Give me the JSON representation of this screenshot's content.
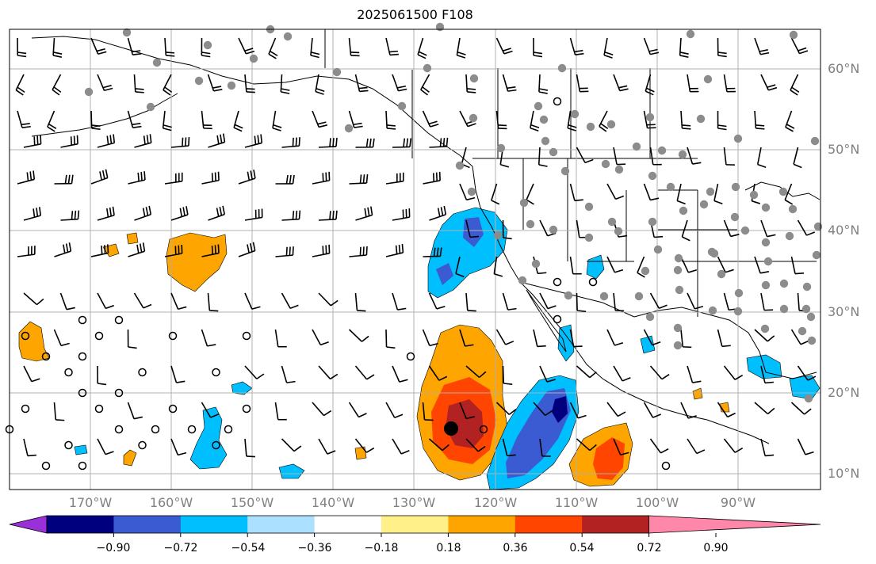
{
  "title": "2025061500 F108",
  "lat_labels": [
    "60°N",
    "50°N",
    "40°N",
    "30°N",
    "20°N",
    "10°N"
  ],
  "lon_labels": [
    "170°W",
    "160°W",
    "150°W",
    "140°W",
    "130°W",
    "120°W",
    "110°W",
    "100°W",
    "90°W"
  ],
  "colorbar": {
    "ticks": [
      "−0.90",
      "−0.72",
      "−0.54",
      "−0.36",
      "−0.18",
      "0.18",
      "0.36",
      "0.54",
      "0.72",
      "0.90"
    ],
    "colors": [
      "#9a30d8",
      "#00007f",
      "#3a5bd1",
      "#00bfff",
      "#ace0ff",
      "#ffffff",
      "#fff08a",
      "#ffa500",
      "#ff4500",
      "#b22222",
      "#ff88aa"
    ]
  },
  "colors": {
    "orange": "#ffa500",
    "red_orange": "#ff4500",
    "dark_red": "#b22222",
    "sky_blue": "#00bfff",
    "blue": "#3a5bd1",
    "navy": "#00007f",
    "station_gray": "#8c8c8c",
    "grid": "#b0b0b0"
  }
}
